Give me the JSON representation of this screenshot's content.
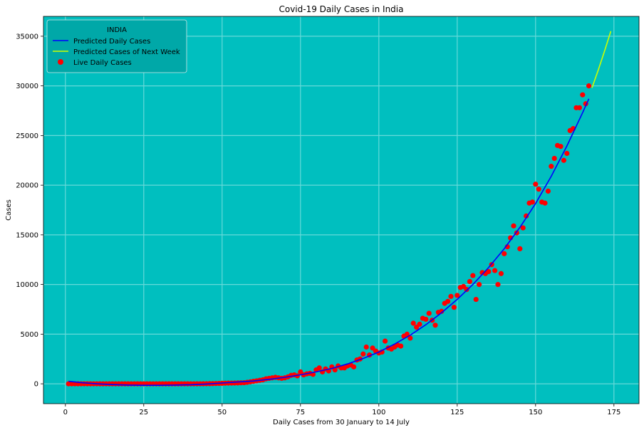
{
  "chart_data": {
    "type": "scatter",
    "title": "Covid-19 Daily Cases in India",
    "xlabel": "Daily Cases from 30 January to 14 July",
    "ylabel": "Cases",
    "xlim": [
      -7,
      183
    ],
    "ylim": [
      -2000,
      37000
    ],
    "xticks": [
      0,
      25,
      50,
      75,
      100,
      125,
      150,
      175
    ],
    "yticks": [
      0,
      5000,
      10000,
      15000,
      20000,
      25000,
      30000,
      35000
    ],
    "grid": true,
    "legend": {
      "title": "INDIA",
      "placement": "top-left",
      "entries": [
        {
          "label": "Predicted Daily Cases",
          "kind": "line",
          "color": "#0000ff"
        },
        {
          "label": "Predicted Cases of Next Week",
          "kind": "line",
          "color": "#ccff00"
        },
        {
          "label": "Live Daily Cases",
          "kind": "marker",
          "color": "#ff0000"
        }
      ]
    },
    "colors": {
      "plot_background": "#00bfbf",
      "grid": "#66d9d9",
      "predicted": "#0000ff",
      "next_week": "#ccff00",
      "live": "#ff0000",
      "legend_background": "#00a8a8"
    },
    "series": [
      {
        "name": "Predicted Daily Cases",
        "kind": "line",
        "x": [
          1,
          5,
          10,
          15,
          20,
          25,
          30,
          35,
          40,
          45,
          50,
          55,
          60,
          65,
          70,
          75,
          80,
          85,
          90,
          95,
          100,
          105,
          110,
          115,
          120,
          125,
          130,
          135,
          140,
          145,
          150,
          155,
          160,
          165,
          167
        ],
        "y": [
          250,
          120,
          0,
          -80,
          -130,
          -150,
          -150,
          -130,
          -90,
          -20,
          80,
          180,
          280,
          450,
          650,
          900,
          1200,
          1550,
          2000,
          2550,
          3200,
          4000,
          4900,
          5950,
          7150,
          8500,
          10000,
          11700,
          13600,
          15750,
          18150,
          20900,
          23950,
          27300,
          28700
        ]
      },
      {
        "name": "Predicted Cases of Next Week",
        "kind": "line",
        "x": [
          168,
          170,
          172,
          174
        ],
        "y": [
          29800,
          31600,
          33500,
          35500
        ]
      },
      {
        "name": "Live Daily Cases",
        "kind": "scatter",
        "x": [
          1,
          2,
          3,
          4,
          5,
          6,
          7,
          8,
          9,
          10,
          11,
          12,
          13,
          14,
          15,
          16,
          17,
          18,
          19,
          20,
          21,
          22,
          23,
          24,
          25,
          26,
          27,
          28,
          29,
          30,
          31,
          32,
          33,
          34,
          35,
          36,
          37,
          38,
          39,
          40,
          41,
          42,
          43,
          44,
          45,
          46,
          47,
          48,
          49,
          50,
          51,
          52,
          53,
          54,
          55,
          56,
          57,
          58,
          59,
          60,
          61,
          62,
          63,
          64,
          65,
          66,
          67,
          68,
          69,
          70,
          71,
          72,
          73,
          74,
          75,
          76,
          77,
          78,
          79,
          80,
          81,
          82,
          83,
          84,
          85,
          86,
          87,
          88,
          89,
          90,
          91,
          92,
          93,
          94,
          95,
          96,
          97,
          98,
          99,
          100,
          101,
          102,
          103,
          104,
          105,
          106,
          107,
          108,
          109,
          110,
          111,
          112,
          113,
          114,
          115,
          116,
          117,
          118,
          119,
          120,
          121,
          122,
          123,
          124,
          125,
          126,
          127,
          128,
          129,
          130,
          131,
          132,
          133,
          134,
          135,
          136,
          137,
          138,
          139,
          140,
          141,
          142,
          143,
          144,
          145,
          146,
          147,
          148,
          149,
          150,
          151,
          152,
          153,
          154,
          155,
          156,
          157,
          158,
          159,
          160,
          161,
          162,
          163,
          164,
          165,
          166,
          167
        ],
        "y": [
          0,
          0,
          0,
          0,
          0,
          0,
          0,
          0,
          0,
          0,
          0,
          0,
          0,
          0,
          0,
          0,
          0,
          0,
          0,
          0,
          0,
          0,
          0,
          0,
          0,
          0,
          0,
          0,
          0,
          0,
          0,
          0,
          0,
          0,
          0,
          0,
          0,
          0,
          0,
          0,
          0,
          0,
          2,
          5,
          10,
          15,
          20,
          30,
          40,
          50,
          60,
          70,
          75,
          80,
          90,
          100,
          110,
          150,
          200,
          250,
          300,
          350,
          400,
          500,
          550,
          600,
          650,
          600,
          550,
          600,
          700,
          850,
          900,
          800,
          1200,
          900,
          1000,
          1050,
          950,
          1400,
          1600,
          1200,
          1500,
          1300,
          1700,
          1400,
          1800,
          1600,
          1600,
          1800,
          1900,
          1700,
          2400,
          2500,
          3000,
          3700,
          2900,
          3600,
          3300,
          3100,
          3200,
          4300,
          3600,
          3500,
          3700,
          3900,
          3800,
          4800,
          5000,
          4600,
          6100,
          5700,
          6000,
          6600,
          6500,
          7100,
          6400,
          5900,
          7200,
          7300,
          8100,
          8300,
          8800,
          7700,
          8900,
          9700,
          9800,
          9500,
          10300,
          10900,
          8500,
          10000,
          11200,
          11100,
          11300,
          12000,
          11400,
          10000,
          11100,
          13100,
          13800,
          14700,
          15900,
          15200,
          13600,
          15700,
          16900,
          18200,
          18300,
          20100,
          19600,
          18300,
          18200,
          19400,
          21900,
          22700,
          24000,
          23900,
          22500,
          23200,
          25500,
          25700,
          27800,
          27800,
          29100,
          28200,
          30000
        ]
      }
    ]
  }
}
